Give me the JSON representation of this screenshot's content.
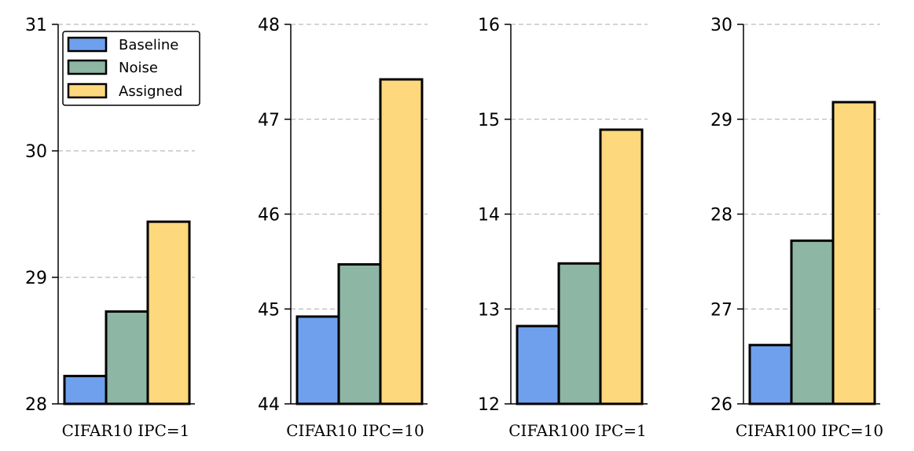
{
  "colors": {
    "Baseline": "#6fa0ee",
    "Noise": "#8db6a4",
    "Assigned": "#fdd87c",
    "edge": "#000000",
    "grid": "#bbbbbb"
  },
  "legend": {
    "items": [
      "Baseline",
      "Noise",
      "Assigned"
    ],
    "placement": "top-left of first panel"
  },
  "chart_data": [
    {
      "type": "bar",
      "xlabel": "CIFAR10 IPC=1",
      "categories": [
        "Baseline",
        "Noise",
        "Assigned"
      ],
      "values": [
        28.22,
        28.73,
        29.44
      ],
      "ylim": [
        28,
        31
      ],
      "yticks": [
        "28",
        "29",
        "30",
        "31"
      ],
      "grid": true
    },
    {
      "type": "bar",
      "xlabel": "CIFAR10 IPC=10",
      "categories": [
        "Baseline",
        "Noise",
        "Assigned"
      ],
      "values": [
        44.92,
        45.47,
        47.42
      ],
      "ylim": [
        44,
        48
      ],
      "yticks": [
        "44",
        "45",
        "46",
        "47",
        "48"
      ],
      "grid": true
    },
    {
      "type": "bar",
      "xlabel": "CIFAR100 IPC=1",
      "categories": [
        "Baseline",
        "Noise",
        "Assigned"
      ],
      "values": [
        12.82,
        13.48,
        14.89
      ],
      "ylim": [
        12,
        16
      ],
      "yticks": [
        "12",
        "13",
        "14",
        "15",
        "16"
      ],
      "grid": true
    },
    {
      "type": "bar",
      "xlabel": "CIFAR100 IPC=10",
      "categories": [
        "Baseline",
        "Noise",
        "Assigned"
      ],
      "values": [
        26.62,
        27.72,
        29.18
      ],
      "ylim": [
        26,
        30
      ],
      "yticks": [
        "26",
        "27",
        "28",
        "29",
        "30"
      ],
      "grid": true
    }
  ]
}
